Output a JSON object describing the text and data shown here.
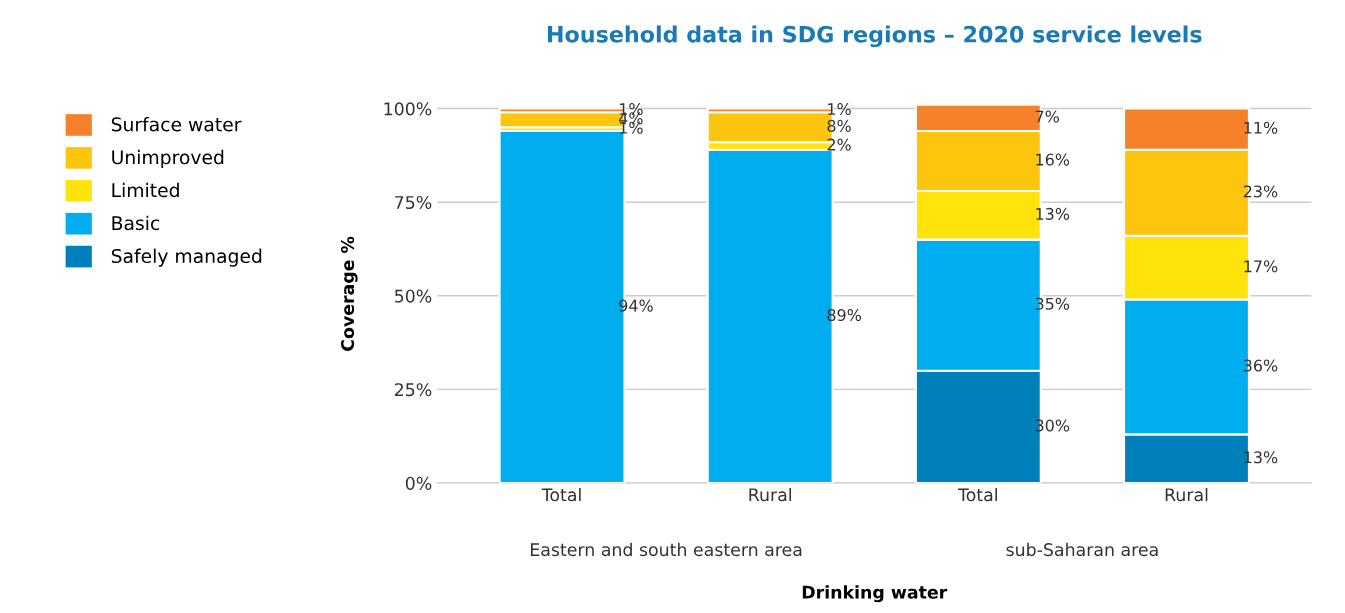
{
  "chart_data": {
    "type": "bar",
    "title": "Household data in SDG regions – 2020 service levels",
    "xlabel": "Drinking water",
    "ylabel": "Coverage %",
    "categories": [
      "Total",
      "Rural",
      "Total",
      "Rural"
    ],
    "annotations": [
      "Eastern and south eastern area",
      "sub-Saharan area"
    ],
    "stacked": true,
    "ylim": [
      0,
      101
    ],
    "yticks": [
      {
        "value": 0,
        "label": "0%"
      },
      {
        "value": 25,
        "label": "25%"
      },
      {
        "value": 50,
        "label": "50%"
      },
      {
        "value": 75,
        "label": "75%"
      },
      {
        "value": 100,
        "label": "100%"
      }
    ],
    "grid": "y",
    "legend": "left",
    "series": [
      {
        "name": "Safely managed",
        "color": "#0080bb",
        "values": [
          null,
          null,
          30,
          13
        ],
        "value_labels": [
          null,
          null,
          "30%",
          "13%"
        ]
      },
      {
        "name": "Basic",
        "color": "#00adee",
        "values": [
          94,
          89,
          35,
          36
        ],
        "value_labels": [
          "94%",
          "89%",
          "35%",
          "36%"
        ]
      },
      {
        "name": "Limited",
        "color": "#ffe30a",
        "values": [
          1,
          2,
          13,
          17
        ],
        "value_labels": [
          "1%",
          "2%",
          "13%",
          "17%"
        ]
      },
      {
        "name": "Unimproved",
        "color": "#fdc50e",
        "values": [
          4,
          8,
          16,
          23
        ],
        "value_labels": [
          "4%",
          "8%",
          "16%",
          "23%"
        ]
      },
      {
        "name": "Surface water",
        "color": "#f5822a",
        "values": [
          1,
          1,
          7,
          11
        ],
        "value_labels": [
          "1%",
          "1%",
          "7%",
          "11%"
        ]
      }
    ]
  }
}
